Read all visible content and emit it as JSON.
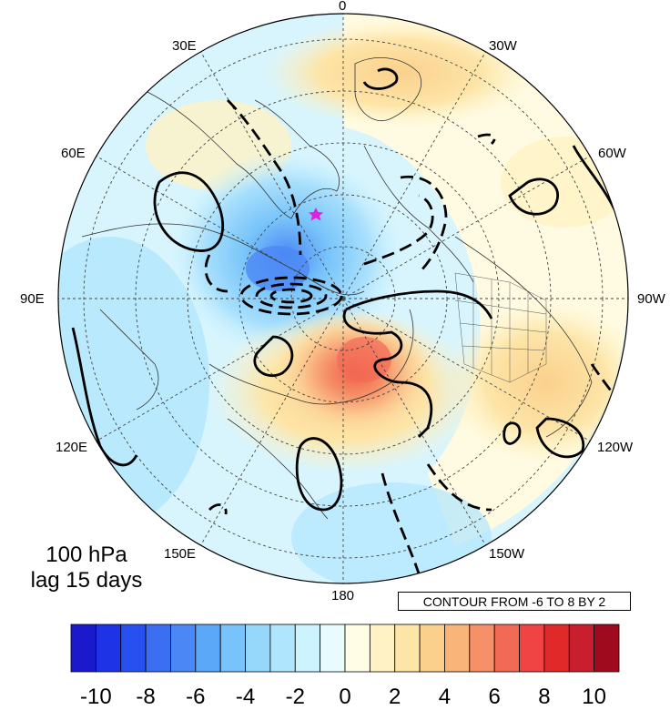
{
  "map": {
    "longitude_labels": {
      "lon_0": "0",
      "lon_30e": "30E",
      "lon_30w": "30W",
      "lon_60e": "60E",
      "lon_60w": "60W",
      "lon_90e": "90E",
      "lon_90w": "90W",
      "lon_120e": "120E",
      "lon_120w": "120W",
      "lon_150e": "150E",
      "lon_150w": "150W",
      "lon_180": "180"
    },
    "level_text_line1": "100 hPa",
    "level_text_line2": "lag 15 days",
    "contour_info": "CONTOUR FROM -6 TO 8 BY 2",
    "marker_color": "#e020e0"
  },
  "colorbar": {
    "labels": [
      "-10",
      "-8",
      "-6",
      "-4",
      "-2",
      "0",
      "2",
      "4",
      "6",
      "8",
      "10"
    ],
    "colors": [
      "#1a1acc",
      "#1e32e6",
      "#2850f0",
      "#3c6ef2",
      "#4c88f5",
      "#5aa8f7",
      "#78c4fa",
      "#96d8fc",
      "#b0e6fd",
      "#cdf3fe",
      "#e8fcff",
      "#fffde6",
      "#fff2c4",
      "#fde5a8",
      "#fbd08c",
      "#f9b47a",
      "#f59068",
      "#f26a56",
      "#f04444",
      "#e02a2a",
      "#c81e2e",
      "#a00a1e"
    ]
  }
}
